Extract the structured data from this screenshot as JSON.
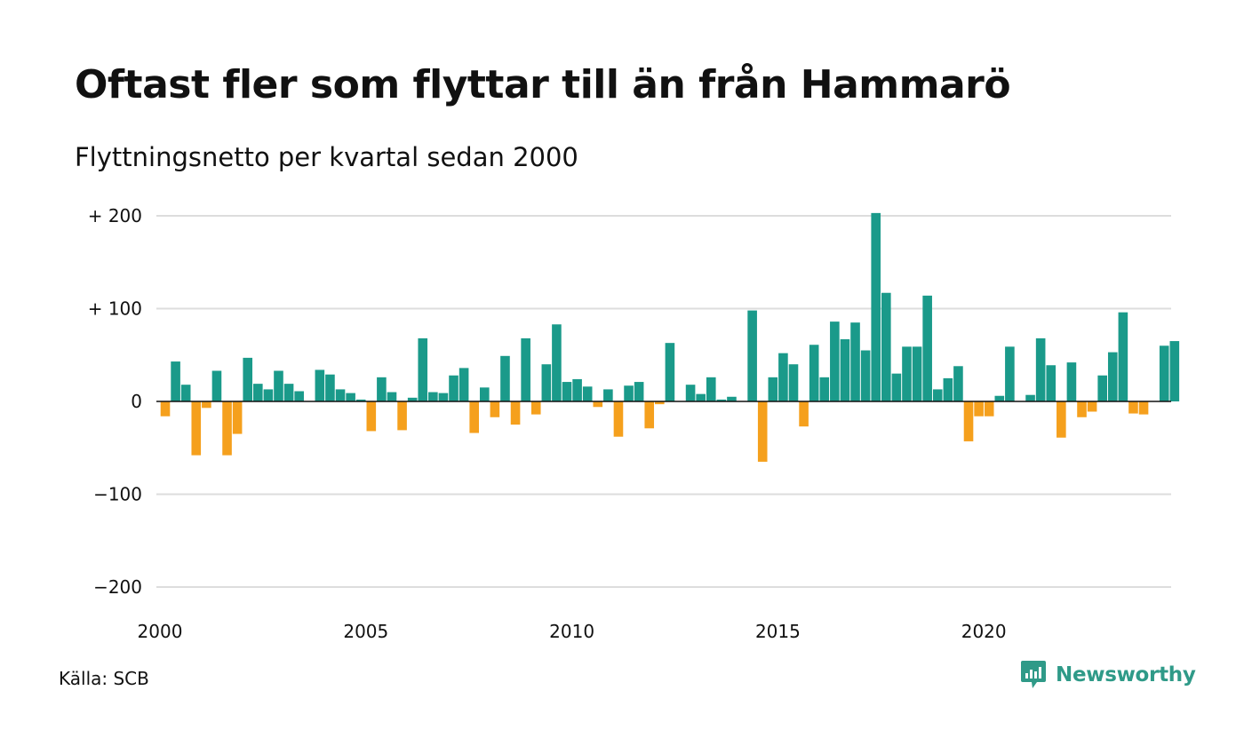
{
  "title": "Oftast fler som flyttar till än från Hammarö",
  "subtitle": "Flyttningsnetto per kvartal sedan 2000",
  "source": "Källa: SCB",
  "brand": {
    "name": "Newsworthy",
    "icon": "newsworthy-logo-icon"
  },
  "colors": {
    "positive": "#1a9a8a",
    "negative": "#f5a01d",
    "grid": "#dddddd",
    "axis": "#111111",
    "brand": "#2f9a88"
  },
  "chart_data": {
    "type": "bar",
    "ylim": [
      -200,
      200
    ],
    "yticks": [
      200,
      100,
      0,
      -100,
      -200
    ],
    "ytick_labels": [
      "+ 200",
      "+ 100",
      "0",
      "−100",
      "−200"
    ],
    "xtick_labels": [
      "2000",
      "2005",
      "2010",
      "2015",
      "2020"
    ],
    "xlim": [
      2000.0,
      2024.75
    ],
    "grid": true,
    "x": [
      2000.0,
      2000.25,
      2000.5,
      2000.75,
      2001.0,
      2001.25,
      2001.5,
      2001.75,
      2002.0,
      2002.25,
      2002.5,
      2002.75,
      2003.0,
      2003.25,
      2003.5,
      2003.75,
      2004.0,
      2004.25,
      2004.5,
      2004.75,
      2005.0,
      2005.25,
      2005.5,
      2005.75,
      2006.0,
      2006.25,
      2006.5,
      2006.75,
      2007.0,
      2007.25,
      2007.5,
      2007.75,
      2008.0,
      2008.25,
      2008.5,
      2008.75,
      2009.0,
      2009.25,
      2009.5,
      2009.75,
      2010.0,
      2010.25,
      2010.5,
      2010.75,
      2011.0,
      2011.25,
      2011.5,
      2011.75,
      2012.0,
      2012.25,
      2012.5,
      2012.75,
      2013.0,
      2013.25,
      2013.5,
      2013.75,
      2014.0,
      2014.25,
      2014.5,
      2014.75,
      2015.0,
      2015.25,
      2015.5,
      2015.75,
      2016.0,
      2016.25,
      2016.5,
      2016.75,
      2017.0,
      2017.25,
      2017.5,
      2017.75,
      2018.0,
      2018.25,
      2018.5,
      2018.75,
      2019.0,
      2019.25,
      2019.5,
      2019.75,
      2020.0,
      2020.25,
      2020.5,
      2020.75,
      2021.0,
      2021.25,
      2021.5,
      2021.75,
      2022.0,
      2022.25,
      2022.5,
      2022.75,
      2023.0,
      2023.25,
      2023.5,
      2023.75,
      2024.0,
      2024.25,
      2024.5
    ],
    "values": [
      -16,
      43,
      18,
      -58,
      -7,
      33,
      -58,
      -35,
      47,
      19,
      13,
      33,
      19,
      11,
      0,
      34,
      29,
      13,
      9,
      2,
      -32,
      26,
      10,
      -31,
      4,
      68,
      10,
      9,
      28,
      36,
      -34,
      15,
      -17,
      49,
      -25,
      68,
      -14,
      40,
      83,
      21,
      24,
      16,
      -6,
      13,
      -38,
      17,
      21,
      -29,
      -3,
      63,
      0,
      18,
      8,
      26,
      2,
      5,
      0,
      98,
      -65,
      26,
      52,
      40,
      -27,
      61,
      26,
      86,
      67,
      85,
      55,
      203,
      117,
      30,
      59,
      59,
      114,
      13,
      25,
      38,
      -43,
      -16,
      -16,
      6,
      59,
      0,
      7,
      68,
      39,
      -39,
      42,
      -17,
      -11,
      28,
      53,
      96,
      -13,
      -14,
      0,
      60,
      65
    ]
  }
}
